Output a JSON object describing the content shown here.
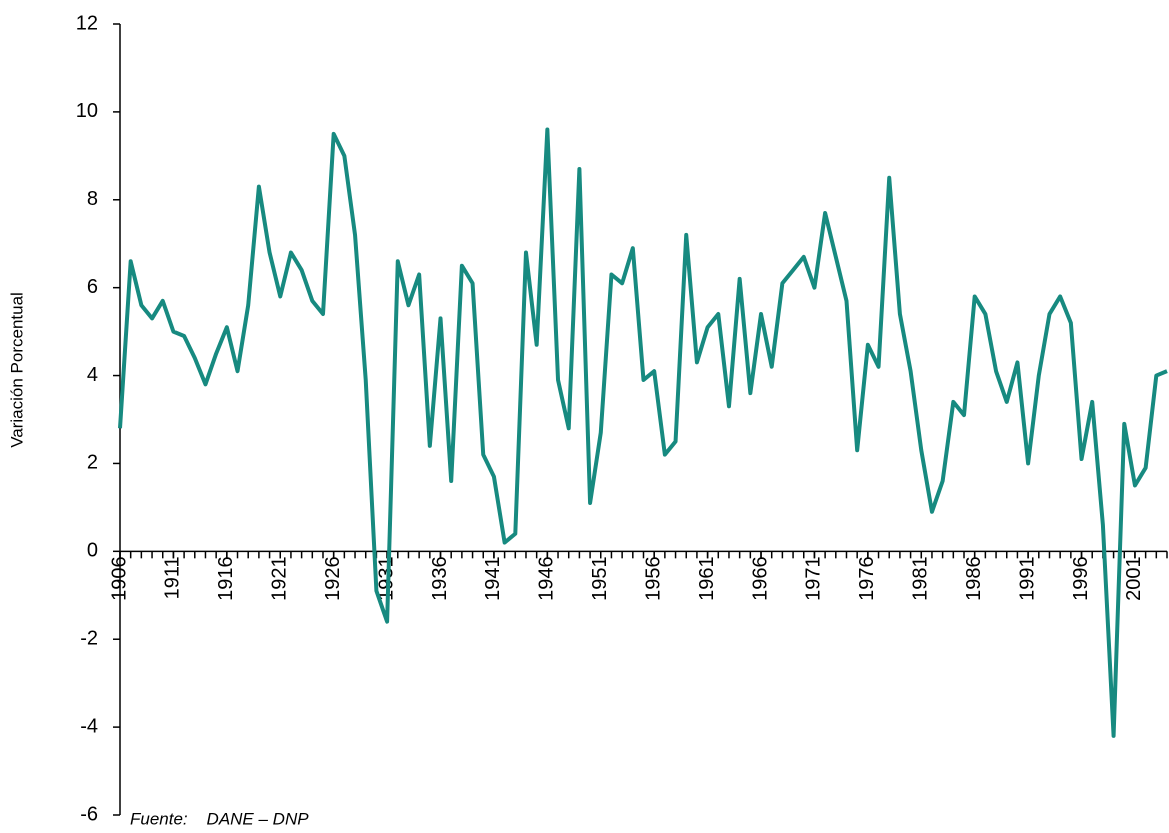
{
  "chart_data": {
    "type": "line",
    "y_axis_label": "Variación Porcentual",
    "source": "Fuente:    DANE – DNP",
    "x": [
      1906,
      1907,
      1908,
      1909,
      1910,
      1911,
      1912,
      1913,
      1914,
      1915,
      1916,
      1917,
      1918,
      1919,
      1920,
      1921,
      1922,
      1923,
      1924,
      1925,
      1926,
      1927,
      1928,
      1929,
      1930,
      1931,
      1932,
      1933,
      1934,
      1935,
      1936,
      1937,
      1938,
      1939,
      1940,
      1941,
      1942,
      1943,
      1944,
      1945,
      1946,
      1947,
      1948,
      1949,
      1950,
      1951,
      1952,
      1953,
      1954,
      1955,
      1956,
      1957,
      1958,
      1959,
      1960,
      1961,
      1962,
      1963,
      1964,
      1965,
      1966,
      1967,
      1968,
      1969,
      1970,
      1971,
      1972,
      1973,
      1974,
      1975,
      1976,
      1977,
      1978,
      1979,
      1980,
      1981,
      1982,
      1983,
      1984,
      1985,
      1986,
      1987,
      1988,
      1989,
      1990,
      1991,
      1992,
      1993,
      1994,
      1995,
      1996,
      1997,
      1998,
      1999,
      2000,
      2001,
      2002,
      2003,
      2004
    ],
    "series": [
      {
        "color": "#178a80",
        "values": [
          2.8,
          6.6,
          5.6,
          5.3,
          5.7,
          5.0,
          4.9,
          4.4,
          3.8,
          4.5,
          5.1,
          4.1,
          5.6,
          8.3,
          6.8,
          5.8,
          6.8,
          6.4,
          5.7,
          5.4,
          9.5,
          9.0,
          7.2,
          3.9,
          -0.9,
          -1.6,
          6.6,
          5.6,
          6.3,
          2.4,
          5.3,
          1.6,
          6.5,
          6.1,
          2.2,
          1.7,
          0.2,
          0.4,
          6.8,
          4.7,
          9.6,
          3.9,
          2.8,
          8.7,
          1.1,
          2.7,
          6.3,
          6.1,
          6.9,
          3.9,
          4.1,
          2.2,
          2.5,
          7.2,
          4.3,
          5.1,
          5.4,
          3.3,
          6.2,
          3.6,
          5.4,
          4.2,
          6.1,
          6.4,
          6.7,
          6.0,
          7.7,
          6.7,
          5.7,
          2.3,
          4.7,
          4.2,
          8.5,
          5.4,
          4.1,
          2.3,
          0.9,
          1.6,
          3.4,
          3.1,
          5.8,
          5.4,
          4.1,
          3.4,
          4.3,
          2.0,
          4.0,
          5.4,
          5.8,
          5.2,
          2.1,
          3.4,
          0.6,
          -4.2,
          2.9,
          1.5,
          1.9,
          4.0,
          4.1
        ]
      }
    ],
    "xlim": [
      1906,
      2004
    ],
    "xticks": [
      1906,
      1911,
      1916,
      1921,
      1926,
      1931,
      1936,
      1941,
      1946,
      1951,
      1956,
      1961,
      1966,
      1971,
      1976,
      1981,
      1986,
      1991,
      1996,
      2001
    ],
    "ylim": [
      -6,
      12
    ],
    "yticks": [
      -6,
      -4,
      -2,
      0,
      2,
      4,
      6,
      8,
      10,
      12
    ]
  }
}
